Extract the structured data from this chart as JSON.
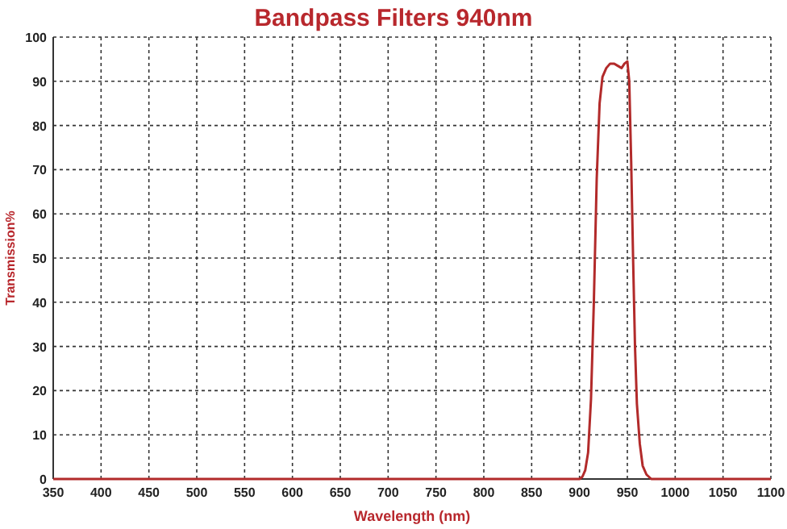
{
  "chart_data": {
    "type": "line",
    "title": "Bandpass Filters 940nm",
    "xlabel": "Wavelength (nm)",
    "ylabel": "Transmission%",
    "xlim": [
      350,
      1100
    ],
    "xticks": [
      350,
      400,
      450,
      500,
      550,
      600,
      650,
      700,
      750,
      800,
      850,
      900,
      950,
      1000,
      1050,
      1100
    ],
    "ylim": [
      0,
      100
    ],
    "yticks": [
      0,
      10,
      20,
      30,
      40,
      50,
      60,
      70,
      80,
      90,
      100
    ],
    "grid": true,
    "line_style": "solid",
    "marker": "none",
    "series": [
      {
        "color": "#b22a2a",
        "x": [
          350,
          500,
          700,
          900,
          903,
          906,
          909,
          912,
          915,
          918,
          921,
          924,
          928,
          932,
          936,
          940,
          944,
          947,
          950,
          952,
          954,
          956,
          958,
          960,
          963,
          966,
          970,
          975,
          1000,
          1100
        ],
        "values": [
          0,
          0,
          0,
          0,
          0.5,
          2,
          6,
          18,
          40,
          68,
          85,
          91,
          93,
          94,
          94,
          93.5,
          93,
          94,
          94.5,
          90,
          72,
          50,
          30,
          17,
          8,
          3,
          1,
          0,
          0,
          0
        ]
      }
    ]
  }
}
